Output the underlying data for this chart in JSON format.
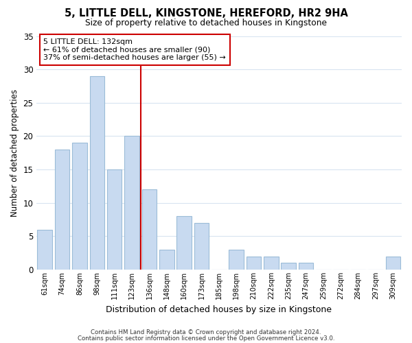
{
  "title": "5, LITTLE DELL, KINGSTONE, HEREFORD, HR2 9HA",
  "subtitle": "Size of property relative to detached houses in Kingstone",
  "xlabel": "Distribution of detached houses by size in Kingstone",
  "ylabel": "Number of detached properties",
  "bar_labels": [
    "61sqm",
    "74sqm",
    "86sqm",
    "98sqm",
    "111sqm",
    "123sqm",
    "136sqm",
    "148sqm",
    "160sqm",
    "173sqm",
    "185sqm",
    "198sqm",
    "210sqm",
    "222sqm",
    "235sqm",
    "247sqm",
    "259sqm",
    "272sqm",
    "284sqm",
    "297sqm",
    "309sqm"
  ],
  "bar_values": [
    6,
    18,
    19,
    29,
    15,
    20,
    12,
    3,
    8,
    7,
    0,
    3,
    2,
    2,
    1,
    1,
    0,
    0,
    0,
    0,
    2
  ],
  "bar_color": "#c8daf0",
  "bar_edgecolor": "#9bbcd8",
  "vline_index": 6,
  "vline_color": "#cc0000",
  "annotation_title": "5 LITTLE DELL: 132sqm",
  "annotation_line1": "← 61% of detached houses are smaller (90)",
  "annotation_line2": "37% of semi-detached houses are larger (55) →",
  "annotation_box_edgecolor": "#cc0000",
  "ylim": [
    0,
    35
  ],
  "yticks": [
    0,
    5,
    10,
    15,
    20,
    25,
    30,
    35
  ],
  "footnote1": "Contains HM Land Registry data © Crown copyright and database right 2024.",
  "footnote2": "Contains public sector information licensed under the Open Government Licence v3.0.",
  "background_color": "#ffffff",
  "grid_color": "#d8e4f0"
}
